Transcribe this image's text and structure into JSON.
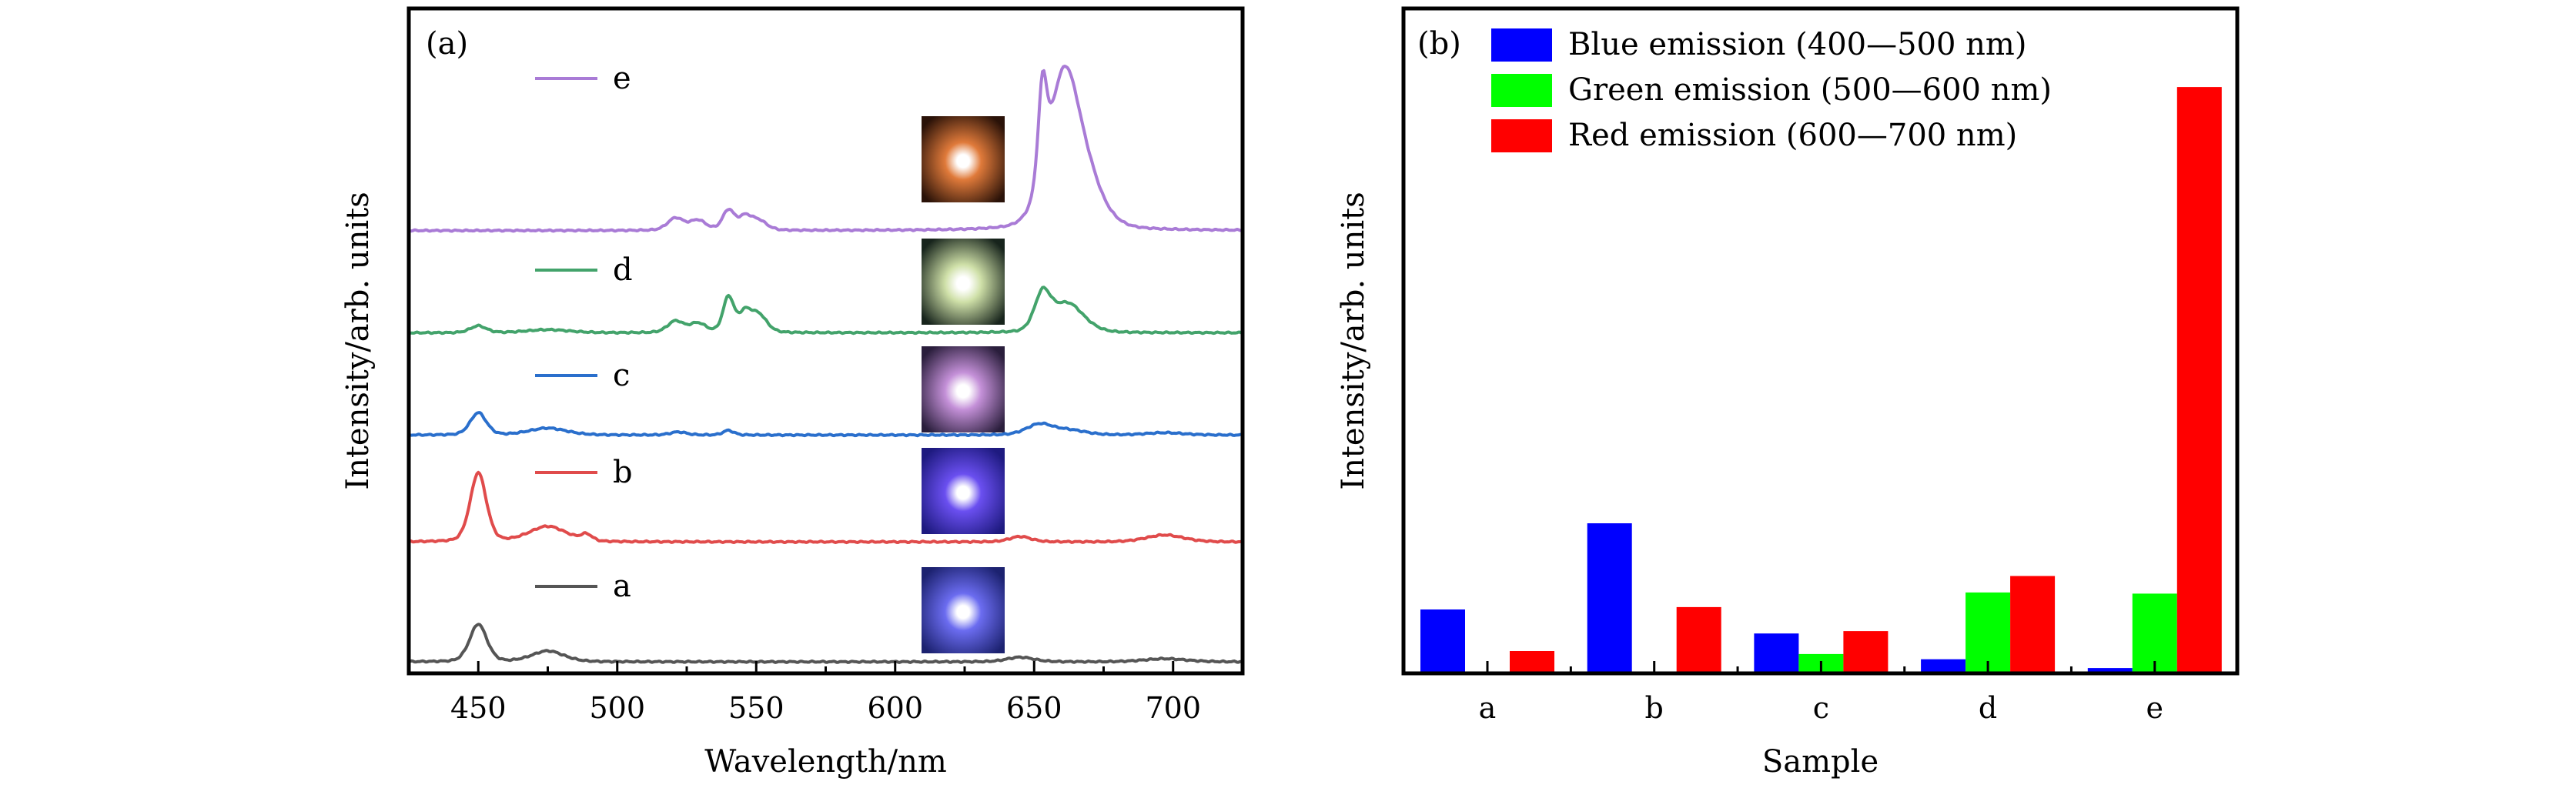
{
  "chart_data": [
    {
      "type": "line",
      "panel_label": "(a)",
      "title": "",
      "xlabel": "Wavelength/nm",
      "ylabel": "Intensity/arb. units",
      "xlim": [
        425,
        725
      ],
      "ylim": [
        0,
        865
      ],
      "x_ticks": [
        450,
        500,
        550,
        600,
        650,
        700
      ],
      "x_tick_labels": [
        "450",
        "500",
        "550",
        "600",
        "650",
        "700"
      ],
      "x_minor_ticks": [
        475,
        525,
        575,
        625,
        675
      ],
      "y_ticks_shown": false,
      "grid": false,
      "legend_placement": "inline-left-of-each-curve",
      "series": [
        {
          "name": "a",
          "color": "#555555",
          "offset": 15,
          "peaks": [
            [
              450,
              49,
              3.2
            ],
            [
              475,
              14,
              6
            ],
            [
              645,
              6,
              5
            ],
            [
              697,
              4,
              8
            ]
          ],
          "inset_image": {
            "description": "blue-white luminescent spot",
            "core": "#ffffff",
            "mid": "#6b6cf0",
            "edge": "#1c2270"
          }
        },
        {
          "name": "b",
          "color": "#e04b4b",
          "offset": 171,
          "peaks": [
            [
              450,
              90,
              3.0
            ],
            [
              475,
              20,
              7
            ],
            [
              489,
              8,
              2
            ],
            [
              645,
              7,
              4
            ],
            [
              697,
              9,
              7
            ]
          ],
          "inset_image": {
            "description": "violet-blue luminescent spot",
            "core": "#ffffff",
            "mid": "#6a4ff0",
            "edge": "#1e1a80"
          }
        },
        {
          "name": "c",
          "color": "#2a6fcc",
          "offset": 310,
          "peaks": [
            [
              450,
              29,
              3.0
            ],
            [
              475,
              9,
              7
            ],
            [
              522,
              4,
              3
            ],
            [
              540,
              6,
              2
            ],
            [
              652,
              14,
              5
            ],
            [
              663,
              6,
              6
            ],
            [
              697,
              3,
              7
            ]
          ],
          "inset_image": {
            "description": "pink-violet luminescent spot",
            "core": "#ffffff",
            "mid": "#c490d8",
            "edge": "#2a1e3c"
          }
        },
        {
          "name": "d",
          "color": "#43a36b",
          "offset": 443,
          "peaks": [
            [
              450,
              9,
              3
            ],
            [
              475,
              4,
              8
            ],
            [
              521,
              15,
              3
            ],
            [
              529,
              12,
              3
            ],
            [
              540,
              46,
              2
            ],
            [
              546,
              25,
              2.5
            ],
            [
              551,
              22,
              3
            ],
            [
              653,
              46,
              3
            ],
            [
              662,
              38,
              6
            ]
          ],
          "inset_image": {
            "description": "yellow-green luminescent spot",
            "core": "#ffffff",
            "mid": "#cfe0a8",
            "edge": "#17241c"
          }
        },
        {
          "name": "e",
          "color": "#a97bd6",
          "offset": 576,
          "peaks": [
            [
              521,
              16,
              3
            ],
            [
              529,
              13,
              3
            ],
            [
              540,
              26,
              2.2
            ],
            [
              546,
              17,
              2.5
            ],
            [
              551,
              12,
              3
            ],
            [
              653,
              120,
              1.6
            ],
            [
              661,
              205,
              6.2
            ],
            [
              671,
              30,
              6
            ]
          ],
          "inset_image": {
            "description": "orange-red luminescent spot",
            "core": "#ffffff",
            "mid": "#e07a3a",
            "edge": "#2a1208"
          }
        }
      ]
    },
    {
      "type": "bar",
      "panel_label": "(b)",
      "title": "",
      "xlabel": "Sample",
      "ylabel": "Intensity/arb. units",
      "categories": [
        "a",
        "b",
        "c",
        "d",
        "e"
      ],
      "ylim": [
        0,
        113.4
      ],
      "y_ticks_shown": false,
      "grid": false,
      "legend_placement": "top-left",
      "series": [
        {
          "name": "Blue emission (400—500 nm)",
          "color": "#0000ff",
          "values": [
            10.9,
            25.6,
            6.8,
            2.4,
            0.9
          ]
        },
        {
          "name": "Green emission (500—600 nm)",
          "color": "#00ff00",
          "values": [
            0,
            0,
            3.3,
            13.8,
            13.6
          ]
        },
        {
          "name": "Red emission (600—700 nm)",
          "color": "#ff0000",
          "values": [
            3.8,
            11.3,
            7.2,
            16.6,
            100
          ]
        }
      ]
    }
  ]
}
